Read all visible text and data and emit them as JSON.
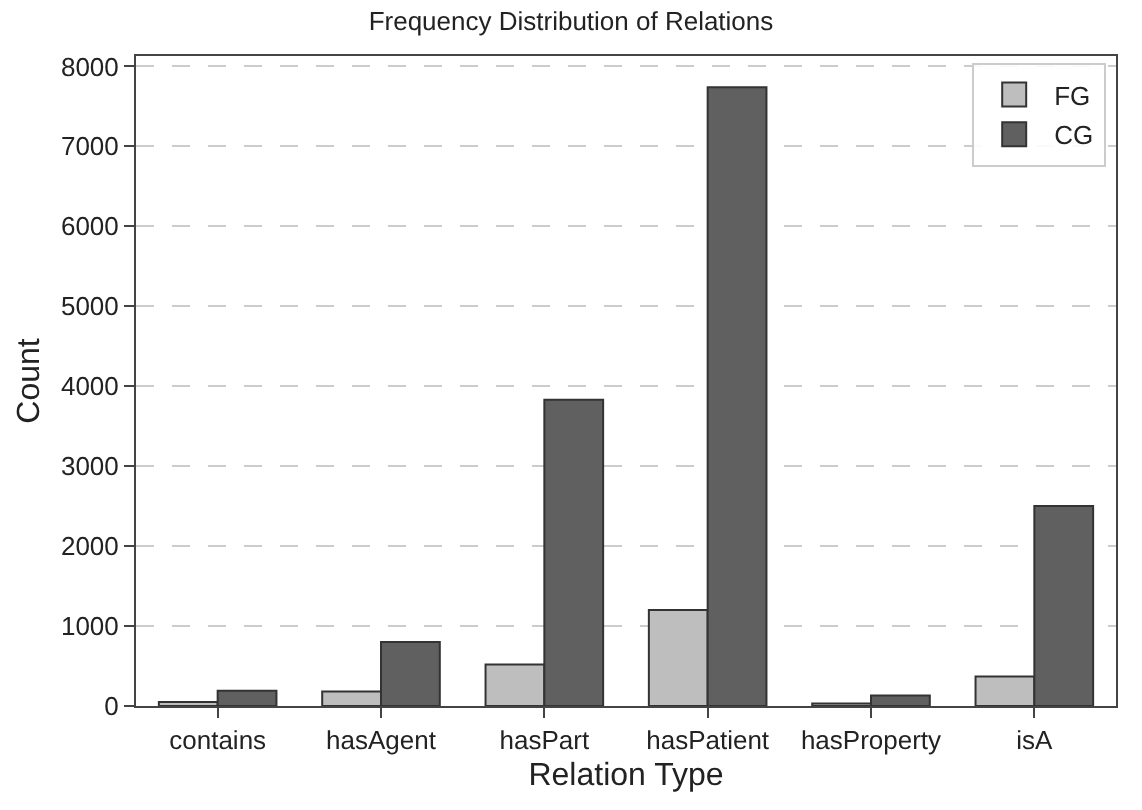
{
  "chart_data": {
    "type": "bar",
    "title": "Frequency Distribution of Relations",
    "xlabel": "Relation Type",
    "ylabel": "Count",
    "categories": [
      "contains",
      "hasAgent",
      "hasPart",
      "hasPatient",
      "hasProperty",
      "isA"
    ],
    "series": [
      {
        "name": "FG",
        "color": "#bebebe",
        "values": [
          50,
          180,
          520,
          1200,
          30,
          370
        ]
      },
      {
        "name": "CG",
        "color": "#606060",
        "values": [
          190,
          800,
          3830,
          7740,
          130,
          2500
        ]
      }
    ],
    "ylim": [
      0,
      8130
    ],
    "yticks": [
      0,
      1000,
      2000,
      3000,
      4000,
      5000,
      6000,
      7000,
      8000
    ],
    "grid": "y",
    "legend": "top right"
  }
}
